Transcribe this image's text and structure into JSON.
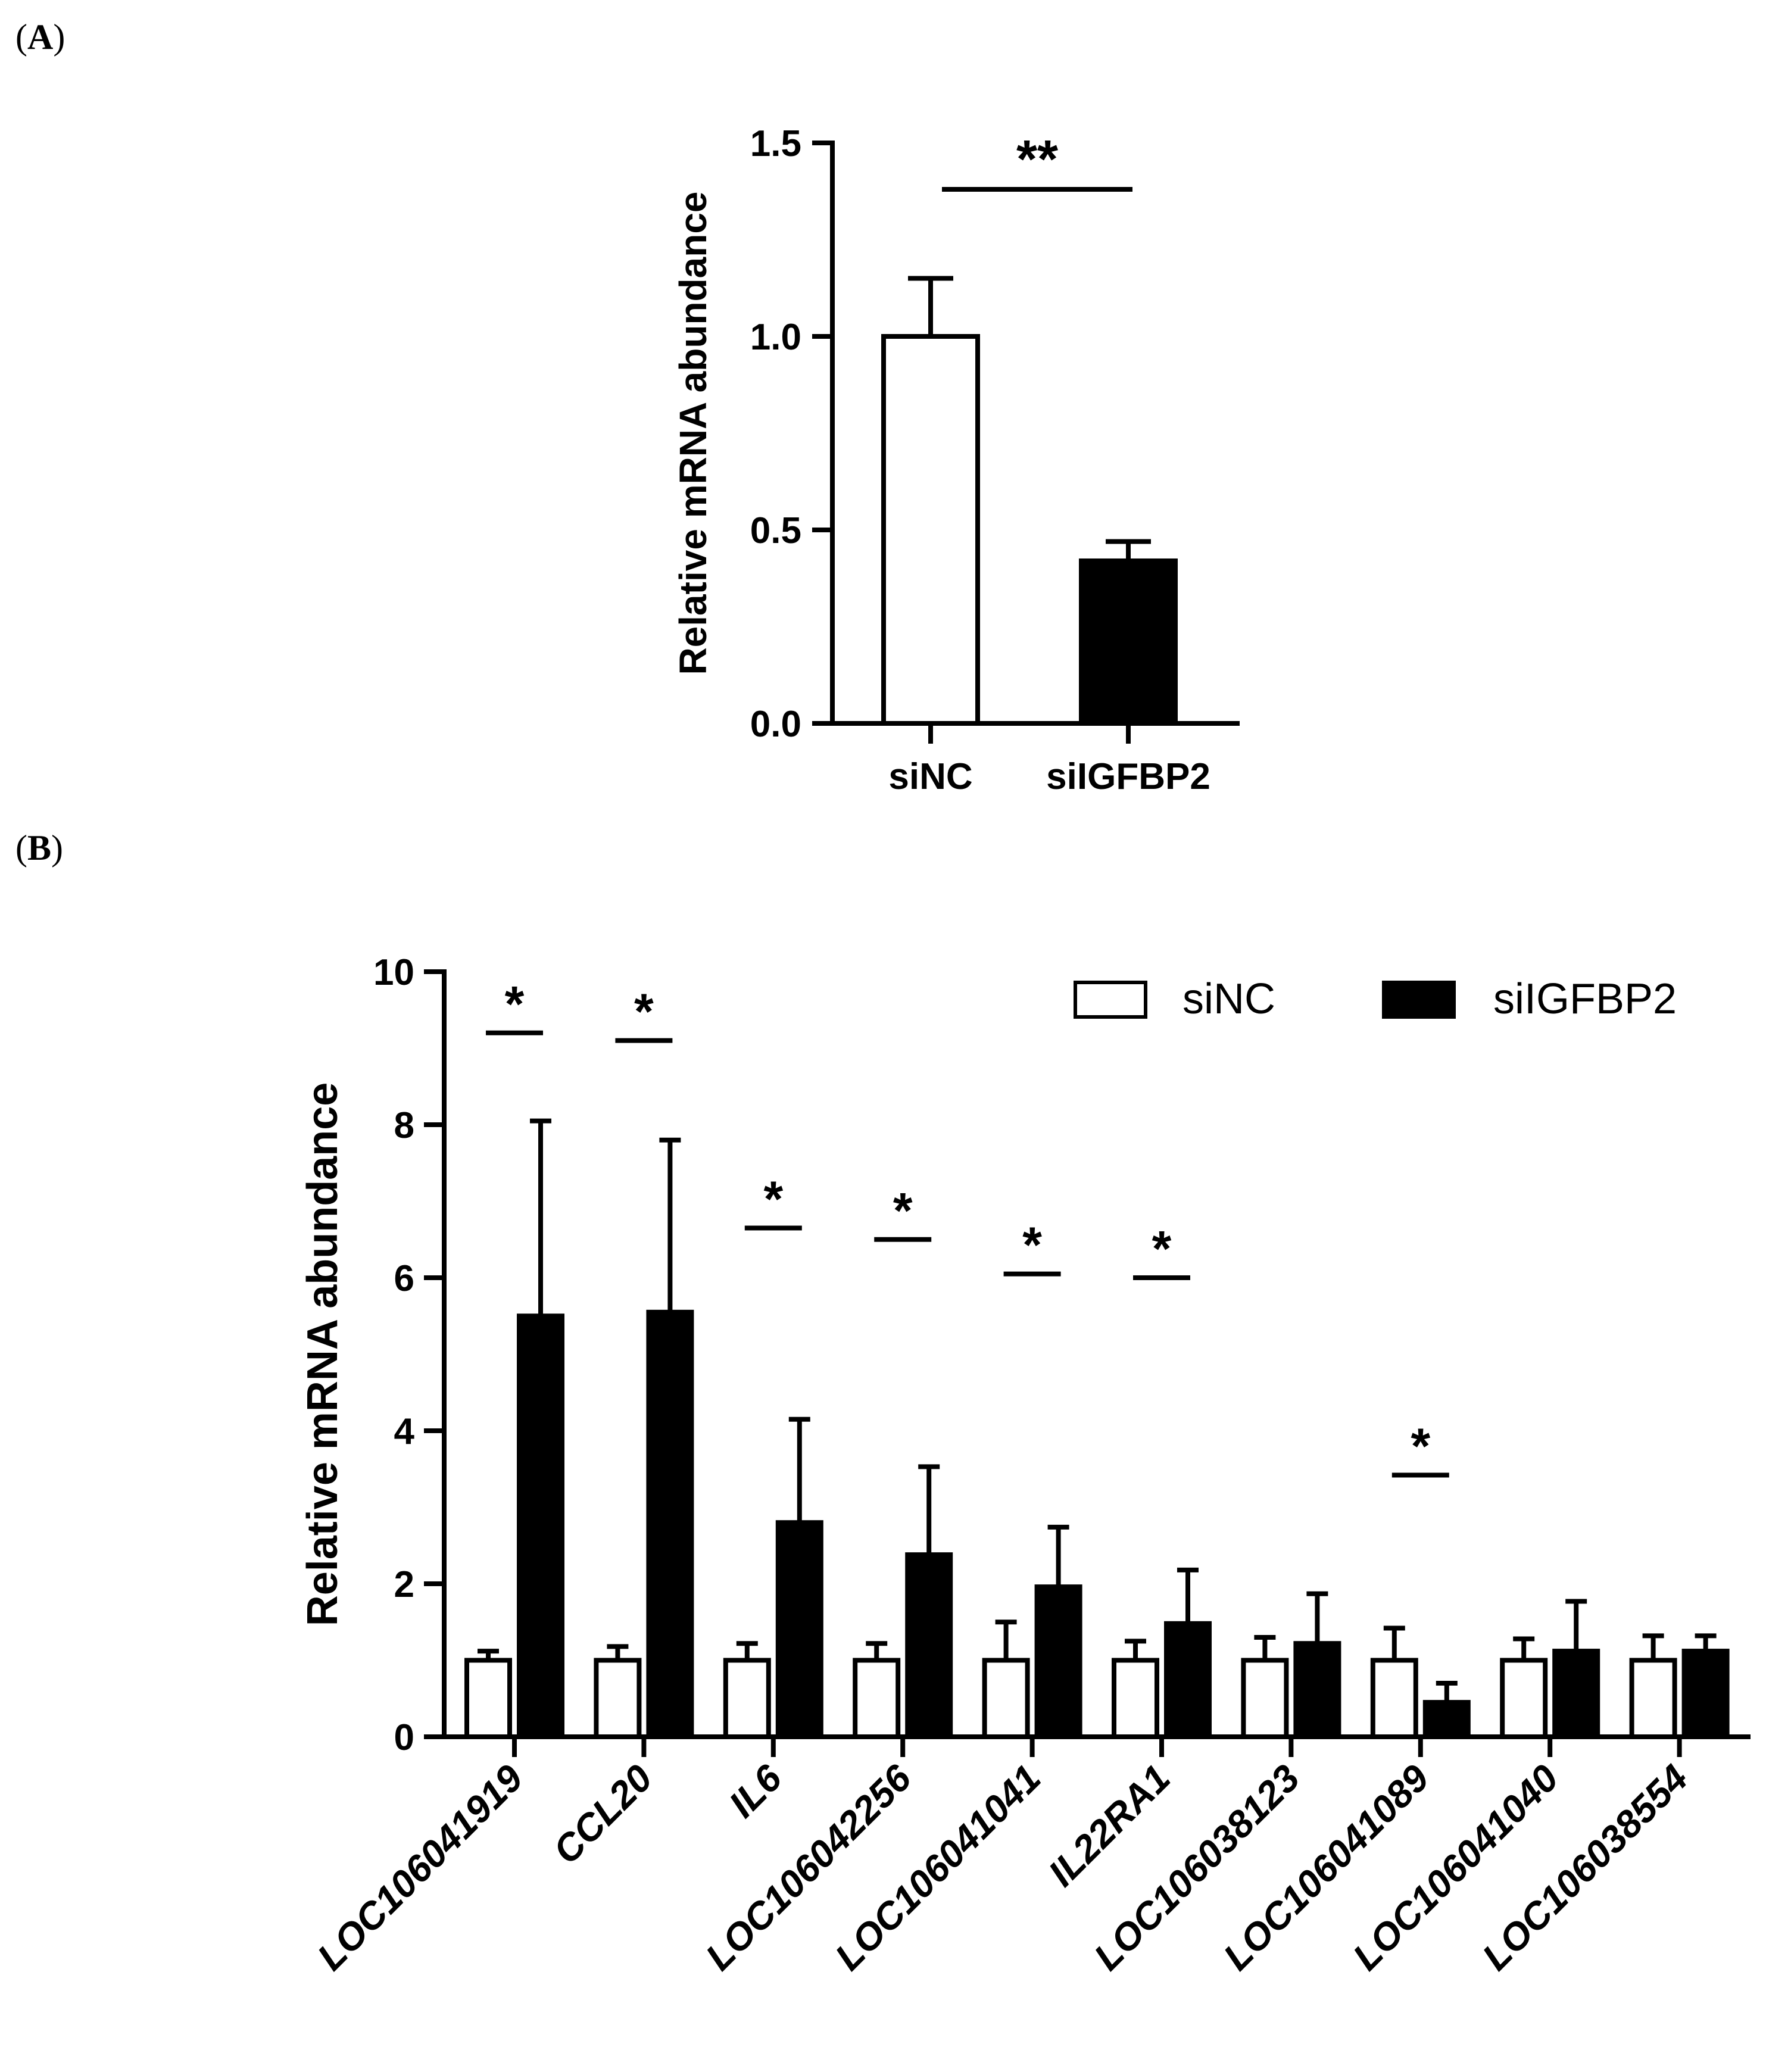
{
  "panels": {
    "a_label": "A",
    "b_label": "B"
  },
  "colors": {
    "sinc_fill": "#ffffff",
    "siigfbp2_fill": "#000000",
    "stroke": "#000000"
  },
  "chart_data": [
    {
      "type": "bar",
      "panel": "A",
      "categories": [
        "siNC",
        "siIGFBP2"
      ],
      "values": [
        1.0,
        0.42
      ],
      "errors": [
        0.15,
        0.05
      ],
      "fills": [
        "#ffffff",
        "#000000"
      ],
      "ylabel": "Relative mRNA abundance",
      "xlabel": "",
      "ylim": [
        0,
        1.5
      ],
      "yticks": [
        0.0,
        0.5,
        1.0,
        1.5
      ],
      "ytick_labels": [
        "0.0",
        "0.5",
        "1.0",
        "1.5"
      ],
      "significance": [
        {
          "from": 0,
          "to": 1,
          "label": "**",
          "y": 1.38
        }
      ]
    },
    {
      "type": "bar",
      "panel": "B",
      "categories": [
        "LOC106041919",
        "CCL20",
        "IL6",
        "LOC106042256",
        "LOC106041041",
        "IL22RA1",
        "LOC106038123",
        "LOC106041089",
        "LOC106041040",
        "LOC106038554"
      ],
      "series": [
        {
          "name": "siNC",
          "fill": "#ffffff",
          "values": [
            1.0,
            1.0,
            1.0,
            1.0,
            1.0,
            1.0,
            1.0,
            1.0,
            1.0,
            1.0
          ],
          "errors": [
            0.12,
            0.18,
            0.22,
            0.22,
            0.5,
            0.25,
            0.3,
            0.42,
            0.28,
            0.32
          ]
        },
        {
          "name": "siIGFBP2",
          "fill": "#000000",
          "values": [
            5.5,
            5.55,
            2.8,
            2.38,
            1.96,
            1.48,
            1.22,
            0.45,
            1.12,
            1.12
          ],
          "errors": [
            2.55,
            2.25,
            1.35,
            1.15,
            0.78,
            0.7,
            0.65,
            0.25,
            0.65,
            0.2
          ]
        }
      ],
      "ylabel": "Relative mRNA abundance",
      "xlabel": "",
      "ylim": [
        0,
        10
      ],
      "yticks": [
        0,
        2,
        4,
        6,
        8,
        10
      ],
      "ytick_labels": [
        "0",
        "2",
        "4",
        "6",
        "8",
        "10"
      ],
      "legend": {
        "position": "top-right",
        "entries": [
          "siNC",
          "siIGFBP2"
        ]
      },
      "significance": [
        {
          "index": 0,
          "label": "*",
          "y": 9.2
        },
        {
          "index": 1,
          "label": "*",
          "y": 9.1
        },
        {
          "index": 2,
          "label": "*",
          "y": 6.65
        },
        {
          "index": 3,
          "label": "*",
          "y": 6.5
        },
        {
          "index": 4,
          "label": "*",
          "y": 6.05
        },
        {
          "index": 5,
          "label": "*",
          "y": 6.0
        },
        {
          "index": 7,
          "label": "*",
          "y": 3.42
        }
      ]
    }
  ]
}
